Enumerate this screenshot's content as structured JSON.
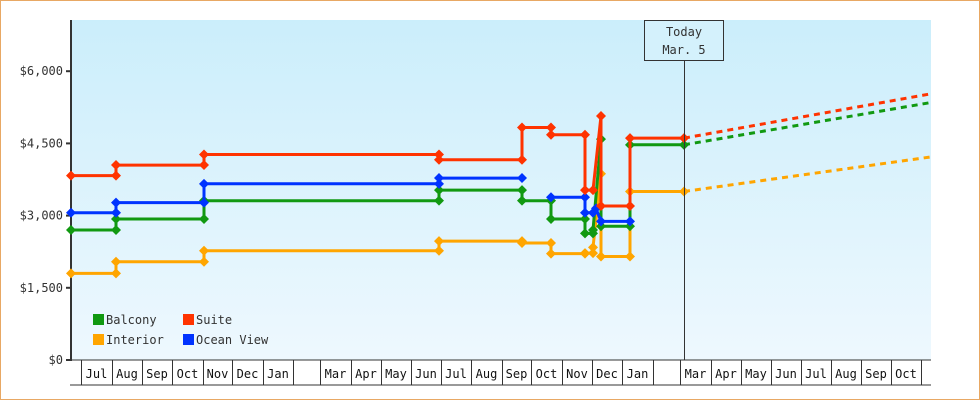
{
  "chart_data": {
    "type": "line",
    "title": "",
    "xlabel": "",
    "ylabel": "",
    "ylim": [
      0,
      7000
    ],
    "y_ticks": [
      "$0",
      "$1,500",
      "$3,000",
      "$4,500",
      "$6,000"
    ],
    "y_tick_values": [
      0,
      1500,
      3000,
      4500,
      6000
    ],
    "x_month_labels": [
      "Jul",
      "Aug",
      "Sep",
      "Oct",
      "Nov",
      "Dec",
      "Jan",
      "",
      "Mar",
      "Apr",
      "May",
      "Jun",
      "Jul",
      "Aug",
      "Sep",
      "Oct",
      "Nov",
      "Dec",
      "Jan",
      "",
      "Mar",
      "Apr",
      "May",
      "Jun",
      "Jul",
      "Aug",
      "Sep",
      "Oct"
    ],
    "today_marker": {
      "line1": "Today",
      "line2": "Mar. 5"
    },
    "legend": [
      {
        "name": "Balcony",
        "color": "#119911"
      },
      {
        "name": "Suite",
        "color": "#ff3300"
      },
      {
        "name": "Interior",
        "color": "#ffa500"
      },
      {
        "name": "Ocean View",
        "color": "#0033ff"
      }
    ],
    "series": [
      {
        "name": "Suite",
        "color": "#ff3300",
        "points": [
          [
            71,
            3830
          ],
          [
            116,
            3830
          ],
          [
            116,
            4050
          ],
          [
            204,
            4050
          ],
          [
            204,
            4270
          ],
          [
            439,
            4270
          ],
          [
            439,
            4160
          ],
          [
            522,
            4160
          ],
          [
            522,
            4830
          ],
          [
            551,
            4830
          ],
          [
            551,
            4680
          ],
          [
            585,
            4680
          ],
          [
            585,
            3530
          ],
          [
            593,
            3530
          ],
          [
            601,
            5070
          ],
          [
            601,
            3200
          ],
          [
            630,
            3200
          ],
          [
            630,
            4610
          ],
          [
            684,
            4610
          ]
        ],
        "projection": [
          [
            684,
            4610
          ],
          [
            931,
            5530
          ]
        ]
      },
      {
        "name": "Balcony",
        "color": "#119911",
        "points": [
          [
            71,
            2700
          ],
          [
            116,
            2700
          ],
          [
            116,
            2930
          ],
          [
            204,
            2930
          ],
          [
            204,
            3310
          ],
          [
            439,
            3310
          ],
          [
            439,
            3530
          ],
          [
            522,
            3530
          ],
          [
            522,
            3310
          ],
          [
            551,
            3310
          ],
          [
            551,
            2930
          ],
          [
            585,
            2930
          ],
          [
            585,
            2630
          ],
          [
            593,
            2630
          ],
          [
            593,
            2700
          ],
          [
            601,
            4590
          ],
          [
            601,
            2780
          ],
          [
            630,
            2780
          ],
          [
            630,
            4470
          ],
          [
            684,
            4470
          ]
        ],
        "projection": [
          [
            684,
            4470
          ],
          [
            931,
            5350
          ]
        ]
      },
      {
        "name": "Ocean View",
        "color": "#0033ff",
        "points": [
          [
            71,
            3060
          ],
          [
            116,
            3060
          ],
          [
            116,
            3270
          ],
          [
            204,
            3270
          ],
          [
            204,
            3660
          ],
          [
            439,
            3660
          ],
          [
            439,
            3780
          ],
          [
            522,
            3780
          ]
        ],
        "segment2": [
          [
            551,
            3380
          ],
          [
            585,
            3380
          ],
          [
            585,
            3060
          ],
          [
            593,
            3060
          ],
          [
            596,
            3150
          ],
          [
            601,
            2880
          ],
          [
            630,
            2880
          ]
        ],
        "projection": []
      },
      {
        "name": "Interior",
        "color": "#ffa500",
        "points": [
          [
            71,
            1800
          ],
          [
            116,
            1800
          ],
          [
            116,
            2040
          ],
          [
            204,
            2040
          ],
          [
            204,
            2270
          ],
          [
            439,
            2270
          ],
          [
            439,
            2470
          ],
          [
            522,
            2470
          ],
          [
            522,
            2430
          ],
          [
            551,
            2430
          ],
          [
            551,
            2210
          ],
          [
            585,
            2210
          ],
          [
            585,
            2220
          ],
          [
            593,
            2220
          ],
          [
            593,
            2340
          ],
          [
            601,
            3870
          ],
          [
            601,
            2150
          ],
          [
            630,
            2150
          ],
          [
            630,
            3500
          ],
          [
            684,
            3500
          ]
        ],
        "projection": [
          [
            684,
            3500
          ],
          [
            931,
            4220
          ]
        ]
      }
    ],
    "legend_position": "lower-left",
    "grid": false
  }
}
